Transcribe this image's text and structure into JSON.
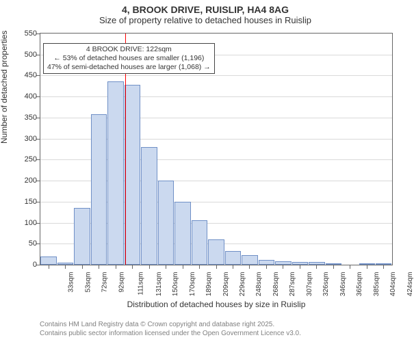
{
  "title": "4, BROOK DRIVE, RUISLIP, HA4 8AG",
  "subtitle": "Size of property relative to detached houses in Ruislip",
  "ylabel": "Number of detached properties",
  "xlabel": "Distribution of detached houses by size in Ruislip",
  "footer_line1": "Contains HM Land Registry data © Crown copyright and database right 2025.",
  "footer_line2": "Contains public sector information licensed under the Open Government Licence v3.0.",
  "chart": {
    "type": "histogram",
    "ylim": [
      0,
      550
    ],
    "ytick_step": 50,
    "background_color": "#ffffff",
    "grid_color": "#d9d9d9",
    "axis_color": "#666666",
    "bar_fill": "#cbd9ef",
    "bar_stroke": "#6f8fc6",
    "bar_width": 0.96,
    "marker_value": 122,
    "marker_color": "#ff0000",
    "title_fontsize": 14,
    "subtitle_fontsize": 13,
    "axis_label_fontsize": 12,
    "tick_fontsize": 11,
    "xtick_fontsize": 10,
    "footer_fontsize": 10,
    "annotation_fontsize": 10.5,
    "text_color": "#333333",
    "footer_color": "#808080",
    "xcategories": [
      "33sqm",
      "53sqm",
      "72sqm",
      "92sqm",
      "111sqm",
      "131sqm",
      "150sqm",
      "170sqm",
      "189sqm",
      "209sqm",
      "229sqm",
      "248sqm",
      "268sqm",
      "287sqm",
      "307sqm",
      "326sqm",
      "346sqm",
      "365sqm",
      "385sqm",
      "404sqm",
      "424sqm"
    ],
    "values": [
      20,
      5,
      135,
      358,
      436,
      428,
      280,
      200,
      150,
      105,
      60,
      32,
      22,
      12,
      8,
      7,
      6,
      4,
      0,
      4,
      3
    ],
    "annotation": {
      "line1": "4 BROOK DRIVE: 122sqm",
      "line2": "← 53% of detached houses are smaller (1,196)",
      "line3": "47% of semi-detached houses are larger (1,068) →"
    }
  }
}
